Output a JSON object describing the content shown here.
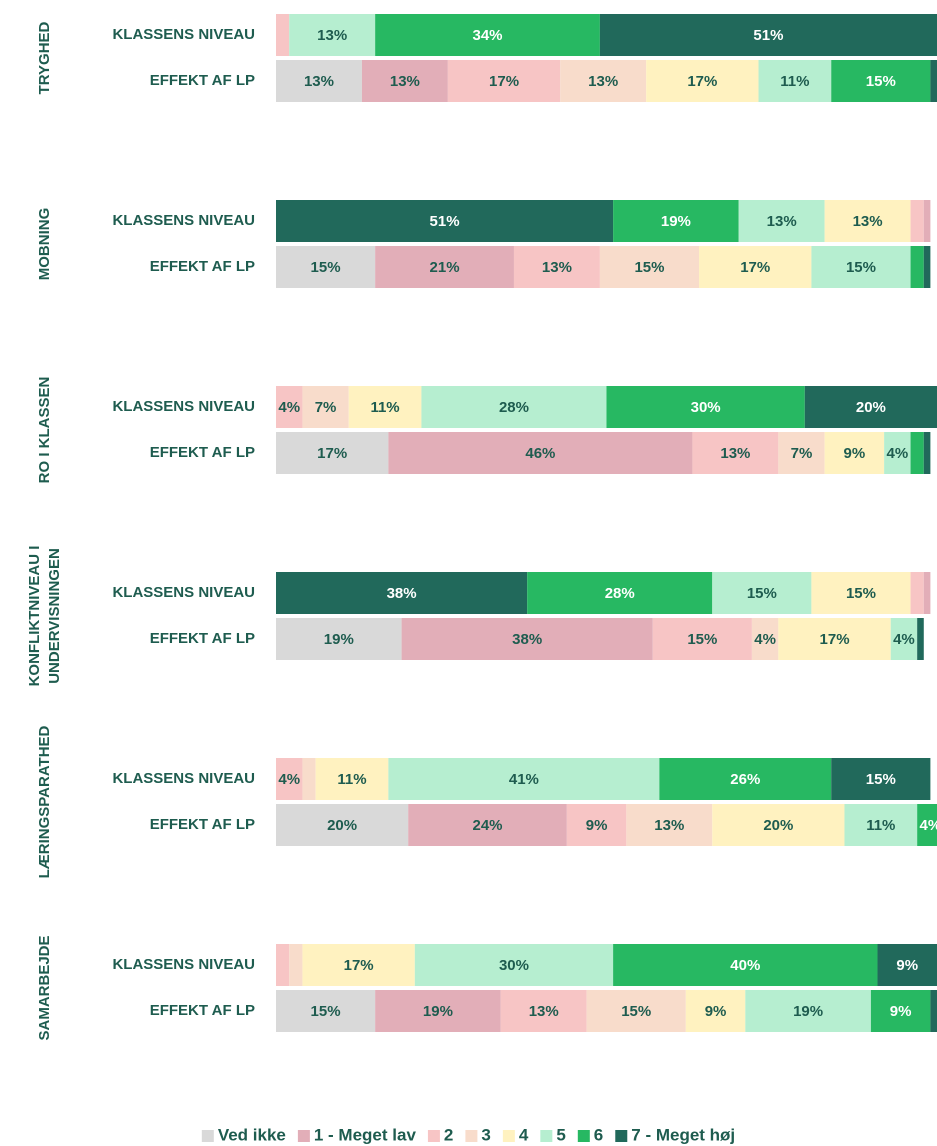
{
  "chart_data": {
    "type": "stacked-bar-100",
    "xlim": [
      0,
      100
    ],
    "series": [
      {
        "name": "Ved ikke",
        "color": "#d9d9d9",
        "label_color": "#1e5c4f"
      },
      {
        "name": "1 - Meget lav",
        "color": "#e2aeb8",
        "label_color": "#1e5c4f"
      },
      {
        "name": "2",
        "color": "#f7c5c5",
        "label_color": "#1e5c4f"
      },
      {
        "name": "3",
        "color": "#f8dccb",
        "label_color": "#1e5c4f"
      },
      {
        "name": "4",
        "color": "#fff2c0",
        "label_color": "#1e5c4f"
      },
      {
        "name": "5",
        "color": "#b6eed0",
        "label_color": "#1e5c4f"
      },
      {
        "name": "6",
        "color": "#27b862",
        "label_color": "#ffffff"
      },
      {
        "name": "7 - Meget høj",
        "color": "#21695b",
        "label_color": "#ffffff"
      }
    ],
    "groups": [
      {
        "label_lines": [
          "TRYGHED"
        ],
        "rows": [
          {
            "label": "KLASSENS NIVEAU",
            "reversed": false,
            "values": [
              0,
              0,
              2,
              0,
              0,
              13,
              34,
              51
            ],
            "value_labels": [
              null,
              null,
              null,
              null,
              null,
              "13%",
              "34%",
              "51%"
            ]
          },
          {
            "label": "EFFEKT AF LP",
            "reversed": false,
            "values": [
              13,
              13,
              17,
              13,
              17,
              11,
              15,
              1
            ],
            "value_labels": [
              "13%",
              "13%",
              "17%",
              "13%",
              "17%",
              "11%",
              "15%",
              null
            ]
          }
        ]
      },
      {
        "label_lines": [
          "MOBNING"
        ],
        "rows": [
          {
            "label": "KLASSENS NIVEAU",
            "reversed": true,
            "values": [
              0,
              1,
              2,
              0,
              13,
              13,
              19,
              51
            ],
            "value_labels": [
              null,
              null,
              null,
              null,
              "13%",
              "13%",
              "19%",
              "51%"
            ]
          },
          {
            "label": "EFFEKT AF LP",
            "reversed": false,
            "values": [
              15,
              21,
              13,
              15,
              17,
              15,
              2,
              1
            ],
            "value_labels": [
              "15%",
              "21%",
              "13%",
              "15%",
              "17%",
              "15%",
              null,
              null
            ]
          }
        ]
      },
      {
        "label_lines": [
          "RO I KLASSEN"
        ],
        "rows": [
          {
            "label": "KLASSENS NIVEAU",
            "reversed": false,
            "values": [
              0,
              0,
              4,
              7,
              11,
              28,
              30,
              20
            ],
            "value_labels": [
              null,
              null,
              "4%",
              "7%",
              "11%",
              "28%",
              "30%",
              "20%"
            ]
          },
          {
            "label": "EFFEKT AF LP",
            "reversed": false,
            "values": [
              17,
              46,
              13,
              7,
              9,
              4,
              2,
              1
            ],
            "value_labels": [
              "17%",
              "46%",
              "13%",
              "7%",
              "9%",
              "4%",
              null,
              null
            ]
          }
        ]
      },
      {
        "label_lines": [
          "KONFLIKTNIVEAU I",
          "UNDERVISNINGEN"
        ],
        "rows": [
          {
            "label": "KLASSENS NIVEAU",
            "reversed": true,
            "values": [
              0,
              1,
              2,
              0,
              15,
              15,
              28,
              38
            ],
            "value_labels": [
              null,
              null,
              null,
              null,
              "15%",
              "15%",
              "28%",
              "38%"
            ]
          },
          {
            "label": "EFFEKT AF LP",
            "reversed": false,
            "values": [
              19,
              38,
              15,
              4,
              17,
              4,
              0,
              1
            ],
            "value_labels": [
              "19%",
              "38%",
              "15%",
              "4%",
              "17%",
              "4%",
              null,
              null
            ]
          }
        ]
      },
      {
        "label_lines": [
          "LÆRINGSPARATHED"
        ],
        "rows": [
          {
            "label": "KLASSENS NIVEAU",
            "reversed": false,
            "values": [
              0,
              0,
              4,
              2,
              11,
              41,
              26,
              15
            ],
            "value_labels": [
              null,
              null,
              "4%",
              null,
              "11%",
              "41%",
              "26%",
              "15%"
            ]
          },
          {
            "label": "EFFEKT AF LP",
            "reversed": false,
            "values": [
              20,
              24,
              9,
              13,
              20,
              11,
              4,
              0
            ],
            "value_labels": [
              "20%",
              "24%",
              "9%",
              "13%",
              "20%",
              "11%",
              "4%",
              null
            ]
          }
        ]
      },
      {
        "label_lines": [
          "SAMARBEJDE"
        ],
        "rows": [
          {
            "label": "KLASSENS NIVEAU",
            "reversed": false,
            "values": [
              0,
              0,
              2,
              2,
              17,
              30,
              40,
              9
            ],
            "value_labels": [
              null,
              null,
              null,
              null,
              "17%",
              "30%",
              "40%",
              "9%"
            ]
          },
          {
            "label": "EFFEKT AF LP",
            "reversed": false,
            "values": [
              15,
              19,
              13,
              15,
              9,
              19,
              9,
              1
            ],
            "value_labels": [
              "15%",
              "19%",
              "13%",
              "15%",
              "9%",
              "19%",
              "9%",
              null
            ]
          }
        ]
      }
    ]
  }
}
